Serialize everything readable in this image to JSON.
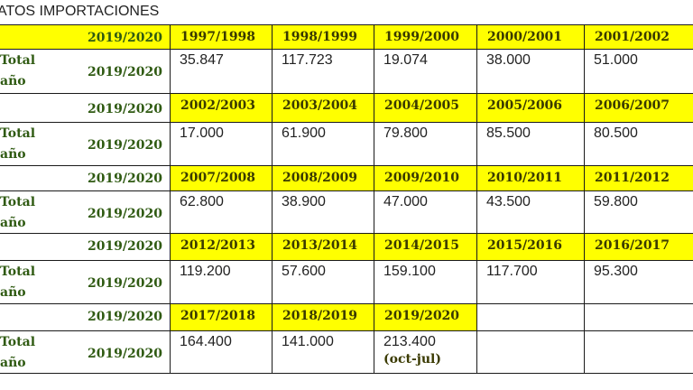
{
  "title": "ATOS IMPORTACIONES",
  "header_label": "2019/2020",
  "data_label": {
    "total": "Total",
    "campaign": "2019/2020",
    "year": "año"
  },
  "blocks": [
    {
      "seasons": [
        "1997/1998",
        "1998/1999",
        "1999/2000",
        "2000/2001",
        "2001/2002"
      ],
      "values": [
        "35.847",
        "117.723",
        "19.074",
        "38.000",
        "51.000"
      ]
    },
    {
      "seasons": [
        "2002/2003",
        "2003/2004",
        "2004/2005",
        "2005/2006",
        "2006/2007"
      ],
      "values": [
        "17.000",
        "61.900",
        "79.800",
        "85.500",
        "80.500"
      ]
    },
    {
      "seasons": [
        "2007/2008",
        "2008/2009",
        "2009/2010",
        "2010/2011",
        "2011/2012"
      ],
      "values": [
        "62.800",
        "38.900",
        "47.000",
        "43.500",
        "59.800"
      ]
    },
    {
      "seasons": [
        "2012/2013",
        "2013/2014",
        "2014/2015",
        "2015/2016",
        "2016/2017"
      ],
      "values": [
        "119.200",
        "57.600",
        "159.100",
        "117.700",
        "95.300"
      ]
    },
    {
      "seasons": [
        "2017/2018",
        "2018/2019",
        "2019/2020"
      ],
      "values": [
        "164.400",
        "141.000",
        "213.400"
      ],
      "note": "(oct-jul)"
    }
  ],
  "colors": {
    "header_fill": "#ffff00",
    "label_text": "#2f5a12",
    "border": "#1a1a1a"
  }
}
